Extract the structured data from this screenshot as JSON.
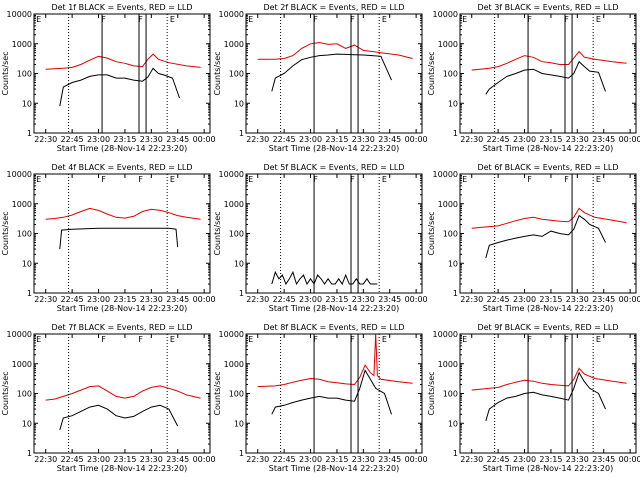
{
  "colors": {
    "events": "#000000",
    "lld": "#e00000",
    "axis": "#000000",
    "background": "#ffffff"
  },
  "shared": {
    "xlabel": "Start Time (28-Nov-14 22:23:20)",
    "ylabel": "Counts/sec",
    "xtick_labels": [
      "22:30",
      "22:45",
      "23:00",
      "23:15",
      "23:30",
      "23:45",
      "00:00"
    ],
    "x_range": [
      "22:23:20",
      "00:03:20"
    ],
    "y_scale": "log",
    "ytick_labels": [
      "1",
      "10",
      "100",
      "1000",
      "10000"
    ],
    "ylim": [
      1,
      10000
    ],
    "series_names": [
      "Events",
      "LLD"
    ],
    "event_marker_labels": [
      "E",
      "F",
      "F",
      "E"
    ]
  },
  "chart_data": [
    {
      "type": "line",
      "title": "Det 1f BLACK = Events, RED = LLD",
      "vlines_dotted": [
        "22:43",
        "23:39"
      ],
      "vlines_solid": [
        "23:02",
        "23:23",
        "23:27"
      ],
      "series": [
        {
          "name": "Events",
          "color": "#000000",
          "x": [
            "22:38",
            "22:40",
            "22:45",
            "22:50",
            "22:55",
            "23:00",
            "23:05",
            "23:10",
            "23:15",
            "23:20",
            "23:25",
            "23:28",
            "23:31",
            "23:34",
            "23:37",
            "23:42",
            "23:46"
          ],
          "y": [
            8,
            35,
            50,
            60,
            80,
            90,
            90,
            70,
            70,
            60,
            55,
            75,
            150,
            100,
            90,
            70,
            15
          ]
        },
        {
          "name": "LLD",
          "color": "#e00000",
          "x": [
            "22:30",
            "22:40",
            "22:45",
            "22:50",
            "22:55",
            "23:00",
            "23:05",
            "23:10",
            "23:15",
            "23:20",
            "23:25",
            "23:28",
            "23:31",
            "23:34",
            "23:40",
            "23:50",
            "23:58"
          ],
          "y": [
            140,
            150,
            160,
            200,
            280,
            380,
            330,
            250,
            220,
            180,
            170,
            300,
            450,
            300,
            230,
            180,
            160
          ]
        }
      ]
    },
    {
      "type": "line",
      "title": "Det 2f BLACK = Events, RED = LLD",
      "vlines_dotted": [
        "22:43",
        "23:39"
      ],
      "vlines_solid": [
        "23:02",
        "23:23",
        "23:27"
      ],
      "series": [
        {
          "name": "Events",
          "color": "#000000",
          "x": [
            "22:38",
            "22:40",
            "22:45",
            "22:50",
            "22:55",
            "23:00",
            "23:05",
            "23:10",
            "23:15",
            "23:20",
            "23:25",
            "23:30",
            "23:35",
            "23:40",
            "23:46"
          ],
          "y": [
            25,
            70,
            100,
            180,
            290,
            350,
            400,
            420,
            450,
            440,
            430,
            420,
            400,
            380,
            60
          ]
        },
        {
          "name": "LLD",
          "color": "#e00000",
          "x": [
            "22:30",
            "22:40",
            "22:45",
            "22:50",
            "22:55",
            "23:00",
            "23:05",
            "23:10",
            "23:15",
            "23:20",
            "23:25",
            "23:30",
            "23:35",
            "23:40",
            "23:50",
            "23:58"
          ],
          "y": [
            300,
            300,
            320,
            400,
            700,
            1000,
            1100,
            950,
            1000,
            700,
            900,
            600,
            550,
            500,
            420,
            320
          ]
        }
      ]
    },
    {
      "type": "line",
      "title": "Det 3f BLACK = Events, RED = LLD",
      "vlines_dotted": [
        "22:43",
        "23:39"
      ],
      "vlines_solid": [
        "23:02",
        "23:23",
        "23:27"
      ],
      "series": [
        {
          "name": "Events",
          "color": "#000000",
          "x": [
            "22:38",
            "22:40",
            "22:45",
            "22:50",
            "22:55",
            "23:00",
            "23:05",
            "23:10",
            "23:15",
            "23:20",
            "23:25",
            "23:28",
            "23:31",
            "23:34",
            "23:37",
            "23:42",
            "23:46"
          ],
          "y": [
            20,
            30,
            50,
            80,
            100,
            130,
            140,
            100,
            90,
            80,
            70,
            100,
            250,
            170,
            120,
            110,
            25
          ]
        },
        {
          "name": "LLD",
          "color": "#e00000",
          "x": [
            "22:30",
            "22:40",
            "22:45",
            "22:50",
            "22:55",
            "23:00",
            "23:05",
            "23:10",
            "23:15",
            "23:20",
            "23:25",
            "23:28",
            "23:31",
            "23:34",
            "23:40",
            "23:50",
            "23:58"
          ],
          "y": [
            130,
            150,
            170,
            220,
            300,
            400,
            350,
            250,
            230,
            200,
            200,
            330,
            550,
            350,
            300,
            250,
            220
          ]
        }
      ]
    },
    {
      "type": "line",
      "title": "Det 4f BLACK = Events, RED = LLD",
      "vlines_dotted": [
        "22:43",
        "23:39"
      ],
      "vlines_solid": [],
      "series": [
        {
          "name": "Events",
          "color": "#000000",
          "x": [
            "22:38",
            "22:39",
            "22:45",
            "23:00",
            "23:15",
            "23:30",
            "23:40",
            "23:44",
            "23:45"
          ],
          "y": [
            30,
            130,
            140,
            150,
            150,
            150,
            150,
            140,
            35
          ]
        },
        {
          "name": "LLD",
          "color": "#e00000",
          "x": [
            "22:30",
            "22:35",
            "22:40",
            "22:45",
            "22:50",
            "22:55",
            "23:00",
            "23:05",
            "23:10",
            "23:15",
            "23:20",
            "23:25",
            "23:30",
            "23:35",
            "23:40",
            "23:45",
            "23:50",
            "23:58"
          ],
          "y": [
            300,
            320,
            350,
            420,
            550,
            700,
            600,
            450,
            350,
            330,
            380,
            550,
            650,
            600,
            500,
            400,
            350,
            300
          ]
        }
      ]
    },
    {
      "type": "line",
      "title": "Det 5f BLACK = Events, RED = LLD",
      "vlines_dotted": [
        "22:43",
        "23:39"
      ],
      "vlines_solid": [
        "23:02",
        "23:23",
        "23:27"
      ],
      "series": [
        {
          "name": "Events",
          "color": "#000000",
          "x": [
            "22:38",
            "22:40",
            "22:42",
            "22:44",
            "22:46",
            "22:48",
            "22:50",
            "22:52",
            "22:54",
            "22:56",
            "22:58",
            "23:00",
            "23:02",
            "23:04",
            "23:06",
            "23:08",
            "23:10",
            "23:12",
            "23:14",
            "23:16",
            "23:18",
            "23:20",
            "23:22",
            "23:24",
            "23:26",
            "23:28",
            "23:30",
            "23:32",
            "23:34",
            "23:36",
            "23:38"
          ],
          "y": [
            2,
            5,
            3,
            4,
            2,
            3,
            5,
            2,
            3,
            4,
            2,
            3,
            2,
            4,
            3,
            2,
            3,
            2,
            2,
            3,
            2,
            4,
            2,
            2,
            3,
            2,
            2,
            3,
            2,
            2,
            2
          ]
        }
      ]
    },
    {
      "type": "line",
      "title": "Det 6f BLACK = Events, RED = LLD",
      "vlines_dotted": [
        "22:43",
        "23:39"
      ],
      "vlines_solid": [
        "23:27"
      ],
      "series": [
        {
          "name": "Events",
          "color": "#000000",
          "x": [
            "22:38",
            "22:40",
            "22:45",
            "22:50",
            "22:55",
            "23:00",
            "23:05",
            "23:10",
            "23:15",
            "23:20",
            "23:25",
            "23:28",
            "23:31",
            "23:34",
            "23:37",
            "23:42",
            "23:46"
          ],
          "y": [
            15,
            40,
            50,
            60,
            70,
            80,
            90,
            80,
            120,
            100,
            90,
            140,
            400,
            300,
            200,
            150,
            50
          ]
        },
        {
          "name": "LLD",
          "color": "#e00000",
          "x": [
            "22:30",
            "22:40",
            "22:45",
            "22:50",
            "22:55",
            "23:00",
            "23:05",
            "23:10",
            "23:15",
            "23:20",
            "23:25",
            "23:28",
            "23:31",
            "23:34",
            "23:40",
            "23:50",
            "23:58"
          ],
          "y": [
            150,
            170,
            180,
            220,
            270,
            320,
            350,
            300,
            280,
            260,
            250,
            350,
            700,
            500,
            350,
            280,
            230
          ]
        }
      ]
    },
    {
      "type": "line",
      "title": "Det 7f BLACK = Events, RED = LLD",
      "vlines_dotted": [
        "22:43",
        "23:39"
      ],
      "vlines_solid": [],
      "series": [
        {
          "name": "Events",
          "color": "#000000",
          "x": [
            "22:38",
            "22:40",
            "22:45",
            "22:50",
            "22:55",
            "23:00",
            "23:05",
            "23:10",
            "23:15",
            "23:20",
            "23:25",
            "23:30",
            "23:35",
            "23:40",
            "23:45"
          ],
          "y": [
            6,
            15,
            18,
            25,
            35,
            40,
            30,
            18,
            15,
            17,
            25,
            35,
            40,
            30,
            8
          ]
        },
        {
          "name": "LLD",
          "color": "#e00000",
          "x": [
            "22:30",
            "22:35",
            "22:40",
            "22:45",
            "22:50",
            "22:55",
            "23:00",
            "23:05",
            "23:10",
            "23:15",
            "23:20",
            "23:25",
            "23:30",
            "23:35",
            "23:40",
            "23:45",
            "23:50",
            "23:58"
          ],
          "y": [
            60,
            65,
            80,
            100,
            130,
            170,
            180,
            120,
            80,
            70,
            80,
            120,
            160,
            180,
            150,
            120,
            90,
            70
          ]
        }
      ]
    },
    {
      "type": "line",
      "title": "Det 8f BLACK = Events, RED = LLD",
      "vlines_dotted": [
        "22:43",
        "23:39"
      ],
      "vlines_solid": [
        "23:02",
        "23:23",
        "23:27"
      ],
      "series": [
        {
          "name": "Events",
          "color": "#000000",
          "x": [
            "22:38",
            "22:40",
            "22:45",
            "22:50",
            "22:55",
            "23:00",
            "23:05",
            "23:10",
            "23:15",
            "23:20",
            "23:25",
            "23:28",
            "23:31",
            "23:34",
            "23:37",
            "23:42",
            "23:46"
          ],
          "y": [
            20,
            35,
            40,
            50,
            60,
            70,
            80,
            70,
            70,
            60,
            55,
            150,
            600,
            300,
            150,
            100,
            20
          ]
        },
        {
          "name": "LLD",
          "color": "#e00000",
          "x": [
            "22:30",
            "22:40",
            "22:45",
            "22:50",
            "22:55",
            "23:00",
            "23:05",
            "23:10",
            "23:15",
            "23:20",
            "23:25",
            "23:28",
            "23:31",
            "23:34",
            "23:36",
            "23:37",
            "23:38",
            "23:40",
            "23:50",
            "23:58"
          ],
          "y": [
            170,
            180,
            200,
            240,
            280,
            320,
            300,
            250,
            230,
            210,
            200,
            350,
            900,
            500,
            400,
            10000,
            400,
            300,
            250,
            220
          ]
        }
      ]
    },
    {
      "type": "line",
      "title": "Det 9f BLACK = Events, RED = LLD",
      "vlines_dotted": [
        "22:43",
        "23:39"
      ],
      "vlines_solid": [
        "23:02",
        "23:23",
        "23:27"
      ],
      "series": [
        {
          "name": "Events",
          "color": "#000000",
          "x": [
            "22:38",
            "22:40",
            "22:45",
            "22:50",
            "22:55",
            "23:00",
            "23:05",
            "23:10",
            "23:15",
            "23:20",
            "23:25",
            "23:28",
            "23:31",
            "23:34",
            "23:37",
            "23:42",
            "23:46"
          ],
          "y": [
            12,
            30,
            50,
            70,
            80,
            100,
            110,
            90,
            80,
            70,
            60,
            150,
            500,
            250,
            150,
            100,
            30
          ]
        },
        {
          "name": "LLD",
          "color": "#e00000",
          "x": [
            "22:30",
            "22:40",
            "22:45",
            "22:50",
            "22:55",
            "23:00",
            "23:05",
            "23:10",
            "23:15",
            "23:20",
            "23:25",
            "23:28",
            "23:31",
            "23:34",
            "23:40",
            "23:50",
            "23:58"
          ],
          "y": [
            130,
            150,
            160,
            200,
            240,
            280,
            260,
            220,
            200,
            190,
            180,
            300,
            700,
            450,
            320,
            260,
            220
          ]
        }
      ]
    }
  ]
}
